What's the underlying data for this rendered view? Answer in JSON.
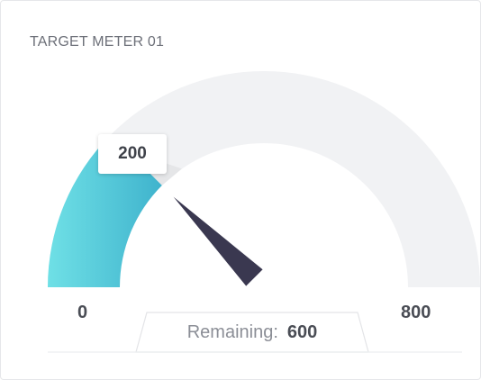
{
  "card": {
    "title": "TARGET METER 01"
  },
  "chart_data": {
    "type": "gauge",
    "title": "TARGET METER 01",
    "min": 0,
    "max": 800,
    "value": 200,
    "remaining_label": "Remaining:",
    "remaining": 600,
    "min_label": "0",
    "max_label": "800",
    "value_label": "200",
    "colors": {
      "fill_start": "#6fe0e6",
      "fill_end": "#3fb3cd",
      "track": "#f1f2f4",
      "needle": "#3a3850"
    }
  }
}
